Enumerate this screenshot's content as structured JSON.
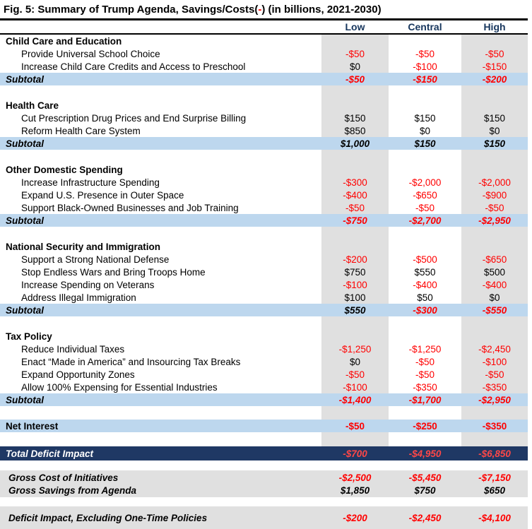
{
  "header": {
    "title_prefix": "Fig. 5: Summary of Trump Agenda, Savings/Costs(",
    "title_minus": "-",
    "title_suffix": ") (in billions, 2021-2030)"
  },
  "labels": {
    "subtotal": "Subtotal"
  },
  "colors": {
    "navy_total_bar": "#1f3864",
    "header_text_navy": "#17365d",
    "subtotal_blue": "#bdd7ee",
    "column_gray": "#e0e0e0",
    "negative_red": "#ff0000"
  },
  "chart_data": {
    "type": "table",
    "title": "Fig. 5: Summary of Trump Agenda, Savings/Costs(-) (in billions, 2021-2030)",
    "columns": [
      "Low",
      "Central",
      "High"
    ],
    "sections": [
      {
        "name": "Child Care and Education",
        "rows": [
          {
            "label": "Provide Universal School Choice",
            "values": [
              "-$50",
              "-$50",
              "-$50"
            ]
          },
          {
            "label": "Increase Child Care Credits and Access to Preschool",
            "values": [
              "$0",
              "-$100",
              "-$150"
            ]
          }
        ],
        "subtotal": [
          "-$50",
          "-$150",
          "-$200"
        ]
      },
      {
        "name": "Health Care",
        "rows": [
          {
            "label": "Cut Prescription Drug Prices and End Surprise Billing",
            "values": [
              "$150",
              "$150",
              "$150"
            ]
          },
          {
            "label": "Reform Health Care System",
            "values": [
              "$850",
              "$0",
              "$0"
            ]
          }
        ],
        "subtotal": [
          "$1,000",
          "$150",
          "$150"
        ]
      },
      {
        "name": "Other Domestic Spending",
        "rows": [
          {
            "label": "Increase Infrastructure Spending",
            "values": [
              "-$300",
              "-$2,000",
              "-$2,000"
            ]
          },
          {
            "label": "Expand U.S. Presence in Outer Space",
            "values": [
              "-$400",
              "-$650",
              "-$900"
            ]
          },
          {
            "label": "Support Black-Owned Businesses and Job Training",
            "values": [
              "-$50",
              "-$50",
              "-$50"
            ]
          }
        ],
        "subtotal": [
          "-$750",
          "-$2,700",
          "-$2,950"
        ]
      },
      {
        "name": "National Security and Immigration",
        "rows": [
          {
            "label": "Support a Strong National Defense",
            "values": [
              "-$200",
              "-$500",
              "-$650"
            ]
          },
          {
            "label": "Stop Endless Wars and Bring Troops Home",
            "values": [
              "$750",
              "$550",
              "$500"
            ]
          },
          {
            "label": "Increase Spending on Veterans",
            "values": [
              "-$100",
              "-$400",
              "-$400"
            ]
          },
          {
            "label": "Address Illegal Immigration",
            "values": [
              "$100",
              "$50",
              "$0"
            ]
          }
        ],
        "subtotal": [
          "$550",
          "-$300",
          "-$550"
        ]
      },
      {
        "name": "Tax Policy",
        "rows": [
          {
            "label": "Reduce Individual Taxes",
            "values": [
              "-$1,250",
              "-$1,250",
              "-$2,450"
            ]
          },
          {
            "label": "Enact “Made in America” and Insourcing Tax Breaks",
            "values": [
              "$0",
              "-$50",
              "-$100"
            ]
          },
          {
            "label": "Expand Opportunity Zones",
            "values": [
              "-$50",
              "-$50",
              "-$50"
            ]
          },
          {
            "label": "Allow 100% Expensing for Essential Industries",
            "values": [
              "-$100",
              "-$350",
              "-$350"
            ]
          }
        ],
        "subtotal": [
          "-$1,400",
          "-$1,700",
          "-$2,950"
        ]
      }
    ],
    "net_interest": {
      "label": "Net Interest",
      "values": [
        "-$50",
        "-$250",
        "-$350"
      ]
    },
    "total_deficit_impact": {
      "label": "Total Deficit Impact",
      "values": [
        "-$700",
        "-$4,950",
        "-$6,850"
      ]
    },
    "gross_cost": {
      "label": "Gross Cost of Initiatives",
      "values": [
        "-$2,500",
        "-$5,450",
        "-$7,150"
      ]
    },
    "gross_savings": {
      "label": "Gross Savings from Agenda",
      "values": [
        "$1,850",
        "$750",
        "$650"
      ]
    },
    "deficit_excluding_one_time": {
      "label": "Deficit Impact, Excluding One-Time Policies",
      "values": [
        "-$200",
        "-$2,450",
        "-$4,100"
      ]
    }
  }
}
